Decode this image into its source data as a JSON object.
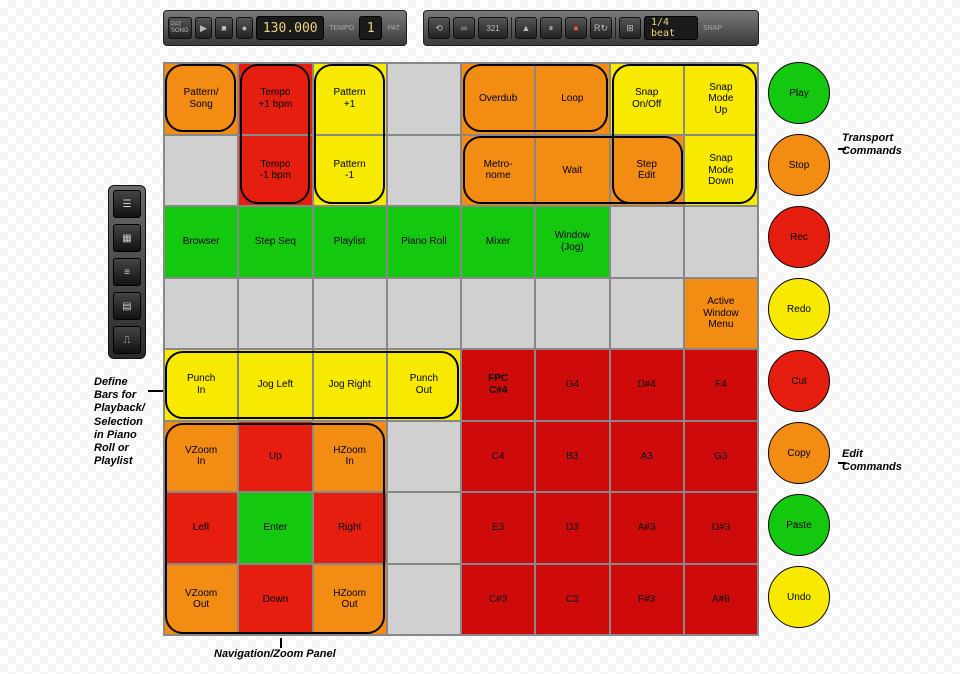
{
  "colors": {
    "orange": "#f28c13",
    "red": "#e61e10",
    "yellow": "#f7ea00",
    "green": "#13c80f",
    "grey": "#d0d0d0",
    "darkred": "#cf0a0a"
  },
  "toolbars": {
    "transport": {
      "pat_song_label": "PAT\nSONG",
      "tempo_display": "130.000",
      "tempo_label": "TEMPO",
      "pat_label": "PAT",
      "pat_display": "1"
    },
    "options": {
      "count_label": "321",
      "snap_label": "1/4 beat",
      "snap_sub": "SNAP"
    }
  },
  "side_panel_icons": [
    "browser-icon",
    "stepseq-icon",
    "playlist-icon",
    "pianoroll-icon",
    "mixer-icon"
  ],
  "grid": {
    "cols": 8,
    "rows": 8,
    "cells": [
      {
        "r": 0,
        "c": 0,
        "label": "Pattern/\nSong",
        "color": "orange"
      },
      {
        "r": 0,
        "c": 1,
        "label": "Tempo\n+1 bpm",
        "color": "red"
      },
      {
        "r": 0,
        "c": 2,
        "label": "Pattern\n+1",
        "color": "yellow"
      },
      {
        "r": 0,
        "c": 4,
        "label": "Overdub",
        "color": "orange"
      },
      {
        "r": 0,
        "c": 5,
        "label": "Loop",
        "color": "orange"
      },
      {
        "r": 0,
        "c": 6,
        "label": "Snap\nOn/Off",
        "color": "yellow"
      },
      {
        "r": 0,
        "c": 7,
        "label": "Snap\nMode\nUp",
        "color": "yellow"
      },
      {
        "r": 1,
        "c": 1,
        "label": "Tempo\n-1 bpm",
        "color": "red"
      },
      {
        "r": 1,
        "c": 2,
        "label": "Pattern\n-1",
        "color": "yellow"
      },
      {
        "r": 1,
        "c": 4,
        "label": "Metro-\nnome",
        "color": "orange"
      },
      {
        "r": 1,
        "c": 5,
        "label": "Wait",
        "color": "orange"
      },
      {
        "r": 1,
        "c": 6,
        "label": "Step\nEdit",
        "color": "orange"
      },
      {
        "r": 1,
        "c": 7,
        "label": "Snap\nMode\nDown",
        "color": "yellow"
      },
      {
        "r": 2,
        "c": 0,
        "label": "Browser",
        "color": "green"
      },
      {
        "r": 2,
        "c": 1,
        "label": "Step Seq",
        "color": "green"
      },
      {
        "r": 2,
        "c": 2,
        "label": "Playlist",
        "color": "green"
      },
      {
        "r": 2,
        "c": 3,
        "label": "Piano Roll",
        "color": "green"
      },
      {
        "r": 2,
        "c": 4,
        "label": "Mixer",
        "color": "green"
      },
      {
        "r": 2,
        "c": 5,
        "label": "Window\n(Jog)",
        "color": "green"
      },
      {
        "r": 3,
        "c": 7,
        "label": "Active\nWindow\nMenu",
        "color": "orange"
      },
      {
        "r": 4,
        "c": 0,
        "label": "Punch\nIn",
        "color": "yellow"
      },
      {
        "r": 4,
        "c": 1,
        "label": "Jog Left",
        "color": "yellow"
      },
      {
        "r": 4,
        "c": 2,
        "label": "Jog Right",
        "color": "yellow"
      },
      {
        "r": 4,
        "c": 3,
        "label": "Punch\nOut",
        "color": "yellow"
      },
      {
        "r": 4,
        "c": 4,
        "label": "FPC\nC#4",
        "color": "darkred",
        "textcolor": "#000",
        "bold": true
      },
      {
        "r": 4,
        "c": 5,
        "label": "G4",
        "color": "darkred"
      },
      {
        "r": 4,
        "c": 6,
        "label": "D#4",
        "color": "darkred"
      },
      {
        "r": 4,
        "c": 7,
        "label": "F4",
        "color": "darkred"
      },
      {
        "r": 5,
        "c": 0,
        "label": "VZoom\nIn",
        "color": "orange"
      },
      {
        "r": 5,
        "c": 1,
        "label": "Up",
        "color": "red"
      },
      {
        "r": 5,
        "c": 2,
        "label": "HZoom\nIn",
        "color": "orange"
      },
      {
        "r": 5,
        "c": 4,
        "label": "C4",
        "color": "darkred"
      },
      {
        "r": 5,
        "c": 5,
        "label": "B3",
        "color": "darkred"
      },
      {
        "r": 5,
        "c": 6,
        "label": "A3",
        "color": "darkred"
      },
      {
        "r": 5,
        "c": 7,
        "label": "G3",
        "color": "darkred"
      },
      {
        "r": 6,
        "c": 0,
        "label": "Left",
        "color": "red"
      },
      {
        "r": 6,
        "c": 1,
        "label": "Enter",
        "color": "green"
      },
      {
        "r": 6,
        "c": 2,
        "label": "Right",
        "color": "red"
      },
      {
        "r": 6,
        "c": 4,
        "label": "E3",
        "color": "darkred"
      },
      {
        "r": 6,
        "c": 5,
        "label": "D3",
        "color": "darkred"
      },
      {
        "r": 6,
        "c": 6,
        "label": "A#3",
        "color": "darkred"
      },
      {
        "r": 6,
        "c": 7,
        "label": "D#3",
        "color": "darkred"
      },
      {
        "r": 7,
        "c": 0,
        "label": "VZoom\nOut",
        "color": "orange"
      },
      {
        "r": 7,
        "c": 1,
        "label": "Down",
        "color": "red"
      },
      {
        "r": 7,
        "c": 2,
        "label": "HZoom\nOut",
        "color": "orange"
      },
      {
        "r": 7,
        "c": 4,
        "label": "C#3",
        "color": "darkred"
      },
      {
        "r": 7,
        "c": 5,
        "label": "C3",
        "color": "darkred"
      },
      {
        "r": 7,
        "c": 6,
        "label": "F#3",
        "color": "darkred"
      },
      {
        "r": 7,
        "c": 7,
        "label": "A#8",
        "color": "darkred"
      }
    ]
  },
  "rounded_groups": [
    {
      "r": 0,
      "c": 0,
      "w": 1,
      "h": 1
    },
    {
      "r": 0,
      "c": 1,
      "w": 1,
      "h": 2
    },
    {
      "r": 0,
      "c": 2,
      "w": 1,
      "h": 2
    },
    {
      "r": 0,
      "c": 4,
      "w": 2,
      "h": 1
    },
    {
      "r": 1,
      "c": 4,
      "w": 3,
      "h": 1
    },
    {
      "r": 0,
      "c": 6,
      "w": 2,
      "h": 2
    },
    {
      "r": 4,
      "c": 0,
      "w": 4,
      "h": 1
    },
    {
      "r": 5,
      "c": 0,
      "w": 3,
      "h": 3
    }
  ],
  "circles": [
    {
      "label": "Play",
      "color": "green"
    },
    {
      "label": "Stop",
      "color": "orange"
    },
    {
      "label": "Rec",
      "color": "red"
    },
    {
      "label": "Redo",
      "color": "yellow"
    },
    {
      "label": "Cut",
      "color": "red"
    },
    {
      "label": "Copy",
      "color": "orange"
    },
    {
      "label": "Paste",
      "color": "green"
    },
    {
      "label": "Undo",
      "color": "yellow"
    }
  ],
  "captions": {
    "transport": "Transport\nCommands",
    "edit": "Edit\nCommands",
    "define_bars": "Define\nBars for\nPlayback/\nSelection\nin Piano\nRoll or\nPlaylist",
    "navzoom": "Navigation/Zoom Panel"
  }
}
